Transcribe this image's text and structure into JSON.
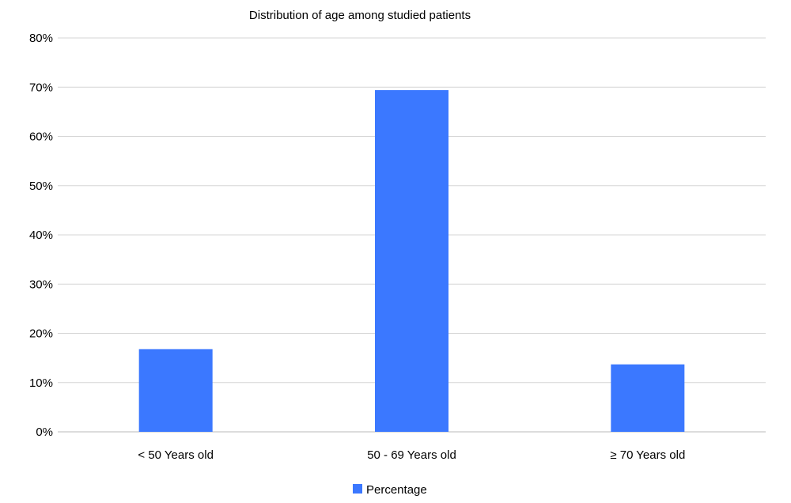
{
  "chart_data": {
    "type": "bar",
    "title": "Distribution of age among studied patients",
    "categories": [
      "< 50 Years old",
      "50 - 69 Years old",
      "≥ 70 Years old"
    ],
    "series": [
      {
        "name": "Percentage",
        "values": [
          16.8,
          69.4,
          13.7
        ],
        "color": "#3b78ff"
      }
    ],
    "yticks": [
      "0%",
      "10%",
      "20%",
      "30%",
      "40%",
      "50%",
      "60%",
      "70%",
      "80%"
    ],
    "ylim": [
      0,
      80
    ],
    "grid": true,
    "legend_position": "bottom"
  }
}
